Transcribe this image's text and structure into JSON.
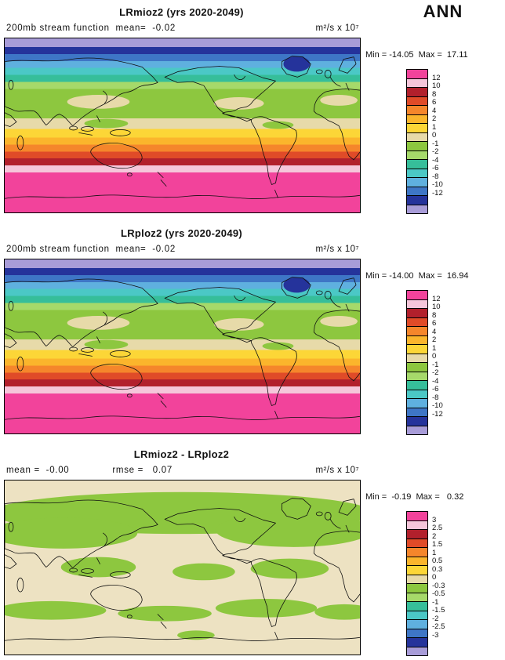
{
  "annotation": {
    "season": "ANN"
  },
  "palette_stream": [
    "#F2439B",
    "#F5C6DA",
    "#B2202C",
    "#E04B28",
    "#F5862B",
    "#FBB52C",
    "#FCD637",
    "#E7DAA9",
    "#8DC73F",
    "#A6D96A",
    "#36BE9A",
    "#4BC8C6",
    "#5FB0DF",
    "#3E76C6",
    "#25339B",
    "#A89CD8"
  ],
  "panels": [
    {
      "title": "LRmioz2 (yrs 2020-2049)",
      "subtitle_left": "200mb stream function  mean=  -0.02",
      "subtitle_mid": "",
      "units": "m²/s x 10⁷",
      "minmax": "Min = -14.05  Max =  17.11",
      "colorbar": {
        "labels": [
          "12",
          "10",
          "8",
          "6",
          "4",
          "2",
          "1",
          "0",
          "-1",
          "-2",
          "-4",
          "-6",
          "-8",
          "-10",
          "-12"
        ],
        "colors": [
          "#F2439B",
          "#F5C6DA",
          "#B2202C",
          "#E04B28",
          "#F5862B",
          "#FBB52C",
          "#FCD637",
          "#E7DAA9",
          "#8DC73F",
          "#A6D96A",
          "#36BE9A",
          "#4BC8C6",
          "#5FB0DF",
          "#3E76C6",
          "#25339B",
          "#A89CD8"
        ]
      },
      "map_bands": [
        {
          "color": "#A89CD8",
          "to": 5
        },
        {
          "color": "#25339B",
          "to": 9
        },
        {
          "color": "#3E76C6",
          "to": 13
        },
        {
          "color": "#5FB0DF",
          "to": 17
        },
        {
          "color": "#4BC8C6",
          "to": 21
        },
        {
          "color": "#36BE9A",
          "to": 25
        },
        {
          "color": "#A6D96A",
          "to": 29
        },
        {
          "color": "#8DC73F",
          "to": 46
        },
        {
          "color": "#E7DAA9",
          "to": 52
        },
        {
          "color": "#FCD637",
          "to": 57
        },
        {
          "color": "#FBB52C",
          "to": 61
        },
        {
          "color": "#F5862B",
          "to": 65
        },
        {
          "color": "#E04B28",
          "to": 69
        },
        {
          "color": "#B2202C",
          "to": 73
        },
        {
          "color": "#F5C6DA",
          "to": 77
        },
        {
          "color": "#F2439B",
          "to": 100
        }
      ]
    },
    {
      "title": "LRploz2 (yrs 2020-2049)",
      "subtitle_left": "200mb stream function  mean=  -0.02",
      "subtitle_mid": "",
      "units": "m²/s x 10⁷",
      "minmax": "Min = -14.00  Max =  16.94",
      "colorbar": {
        "labels": [
          "12",
          "10",
          "8",
          "6",
          "4",
          "2",
          "1",
          "0",
          "-1",
          "-2",
          "-4",
          "-6",
          "-8",
          "-10",
          "-12"
        ],
        "colors": [
          "#F2439B",
          "#F5C6DA",
          "#B2202C",
          "#E04B28",
          "#F5862B",
          "#FBB52C",
          "#FCD637",
          "#E7DAA9",
          "#8DC73F",
          "#A6D96A",
          "#36BE9A",
          "#4BC8C6",
          "#5FB0DF",
          "#3E76C6",
          "#25339B",
          "#A89CD8"
        ]
      },
      "map_bands": [
        {
          "color": "#A89CD8",
          "to": 5
        },
        {
          "color": "#25339B",
          "to": 9
        },
        {
          "color": "#3E76C6",
          "to": 13
        },
        {
          "color": "#5FB0DF",
          "to": 17
        },
        {
          "color": "#4BC8C6",
          "to": 21
        },
        {
          "color": "#36BE9A",
          "to": 25
        },
        {
          "color": "#A6D96A",
          "to": 29
        },
        {
          "color": "#8DC73F",
          "to": 46
        },
        {
          "color": "#E7DAA9",
          "to": 52
        },
        {
          "color": "#FCD637",
          "to": 57
        },
        {
          "color": "#FBB52C",
          "to": 61
        },
        {
          "color": "#F5862B",
          "to": 65
        },
        {
          "color": "#E04B28",
          "to": 69
        },
        {
          "color": "#B2202C",
          "to": 73
        },
        {
          "color": "#F5C6DA",
          "to": 77
        },
        {
          "color": "#F2439B",
          "to": 100
        }
      ]
    },
    {
      "title": "LRmioz2 - LRploz2",
      "subtitle_left": "mean =  -0.00",
      "subtitle_mid": "rmse =   0.07",
      "units": "m²/s x 10⁷",
      "minmax": "Min =  -0.19  Max =   0.32",
      "colorbar": {
        "labels": [
          "3",
          "2.5",
          "2",
          "1.5",
          "1",
          "0.5",
          "0.3",
          "0",
          "-0.3",
          "-0.5",
          "-1",
          "-1.5",
          "-2",
          "-2.5",
          "-3"
        ],
        "colors": [
          "#F2439B",
          "#F5C6DA",
          "#B2202C",
          "#E04B28",
          "#F5862B",
          "#FBB52C",
          "#FCD637",
          "#E7DAA9",
          "#8DC73F",
          "#A6D96A",
          "#36BE9A",
          "#4BC8C6",
          "#5FB0DF",
          "#3E76C6",
          "#25339B",
          "#A89CD8"
        ]
      },
      "map_bands": [
        {
          "color": "#EDE2C2",
          "to": 100
        }
      ]
    }
  ],
  "chart_data": [
    {
      "type": "heatmap",
      "subtype": "global-latlon-contour-map",
      "title": "LRmioz2 (yrs 2020-2049)",
      "variable": "200mb stream function",
      "season": "ANN",
      "units": "m^2/s x 10^7",
      "mean": -0.02,
      "min": -14.05,
      "max": 17.11,
      "contour_levels": [
        -12,
        -10,
        -8,
        -6,
        -4,
        -2,
        -1,
        0,
        1,
        2,
        4,
        6,
        8,
        10,
        12
      ],
      "legend_position": "right",
      "zonal_structure_north_to_south": [
        "<-12 lavender (Arctic)",
        "-12..-6 blues",
        "-6..-2 teals",
        "-2..0 greens (N mid-lat)",
        "0..1 tan (tropics)",
        "1..4 yellow/amber",
        "4..8 orange/red (S mid-lat)",
        "8..12 dark red/pink",
        ">12 magenta (Antarctic)"
      ]
    },
    {
      "type": "heatmap",
      "subtype": "global-latlon-contour-map",
      "title": "LRploz2 (yrs 2020-2049)",
      "variable": "200mb stream function",
      "season": "ANN",
      "units": "m^2/s x 10^7",
      "mean": -0.02,
      "min": -14.0,
      "max": 16.94,
      "contour_levels": [
        -12,
        -10,
        -8,
        -6,
        -4,
        -2,
        -1,
        0,
        1,
        2,
        4,
        6,
        8,
        10,
        12
      ],
      "legend_position": "right"
    },
    {
      "type": "heatmap",
      "subtype": "global-latlon-difference-map",
      "title": "LRmioz2 - LRploz2",
      "variable": "200mb stream function difference",
      "units": "m^2/s x 10^7",
      "mean": 0.0,
      "rmse": 0.07,
      "min": -0.19,
      "max": 0.32,
      "contour_levels": [
        -3,
        -2.5,
        -2,
        -1.5,
        -1,
        -0.5,
        -0.3,
        0,
        0.3,
        0.5,
        1,
        1.5,
        2,
        2.5,
        3
      ],
      "legend_position": "right",
      "dominant_values": "field is between -0.3 (green regions) and +0.3 (tan regions) nearly everywhere"
    }
  ]
}
